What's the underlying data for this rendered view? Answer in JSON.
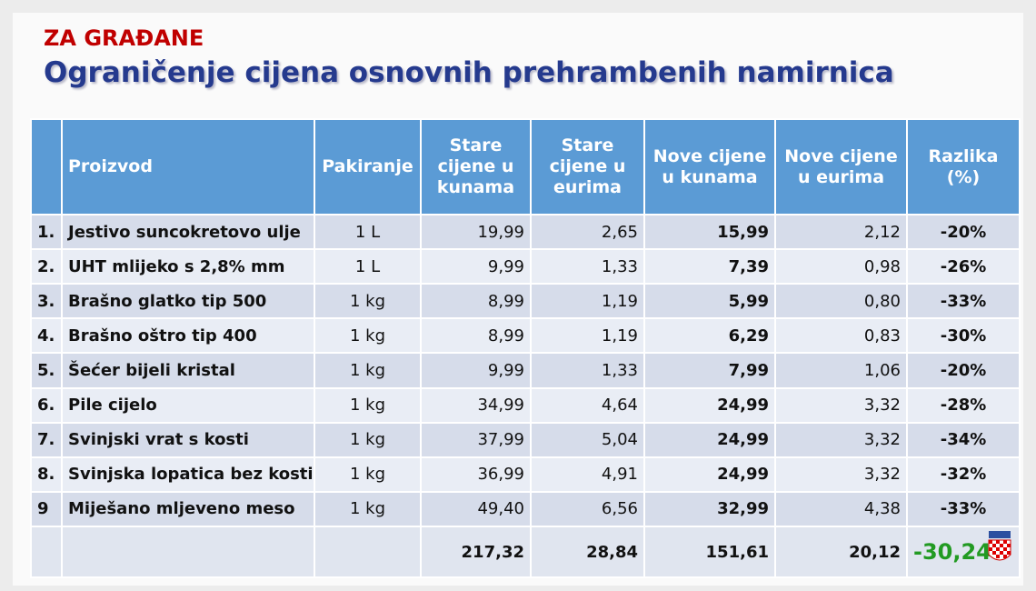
{
  "header": {
    "kicker": "ZA GRAĐANE",
    "title": "Ograničenje cijena osnovnih prehrambenih namirnica"
  },
  "table": {
    "columns": [
      "Proizvod",
      "Pakiranje",
      "Stare cijene u kunama",
      "Stare cijene u eurima",
      "Nove cijene u kunama",
      "Nove cijene u eurima",
      "Razlika (%)"
    ],
    "rows": [
      [
        "1.",
        "Jestivo suncokretovo ulje",
        "1 L",
        "19,99",
        "2,65",
        "15,99",
        "2,12",
        "-20%"
      ],
      [
        "2.",
        "UHT mlijeko s 2,8% mm",
        "1 L",
        "9,99",
        "1,33",
        "7,39",
        "0,98",
        "-26%"
      ],
      [
        "3.",
        "Brašno glatko tip 500",
        "1 kg",
        "8,99",
        "1,19",
        "5,99",
        "0,80",
        "-33%"
      ],
      [
        "4.",
        "Brašno oštro tip 400",
        "1 kg",
        "8,99",
        "1,19",
        "6,29",
        "0,83",
        "-30%"
      ],
      [
        "5.",
        "Šećer bijeli kristal",
        "1 kg",
        "9,99",
        "1,33",
        "7,99",
        "1,06",
        "-20%"
      ],
      [
        "6.",
        "Pile cijelo",
        "1 kg",
        "34,99",
        "4,64",
        "24,99",
        "3,32",
        "-28%"
      ],
      [
        "7.",
        "Svinjski vrat s kosti",
        "1 kg",
        "37,99",
        "5,04",
        "24,99",
        "3,32",
        "-34%"
      ],
      [
        "8.",
        "Svinjska lopatica bez kosti",
        "1 kg",
        "36,99",
        "4,91",
        "24,99",
        "3,32",
        "-32%"
      ],
      [
        "9",
        "Miješano mljeveno meso",
        "1 kg",
        "49,40",
        "6,56",
        "32,99",
        "4,38",
        "-33%"
      ]
    ],
    "totals": [
      "217,32",
      "28,84",
      "151,61",
      "20,12",
      "-30,24"
    ]
  }
}
